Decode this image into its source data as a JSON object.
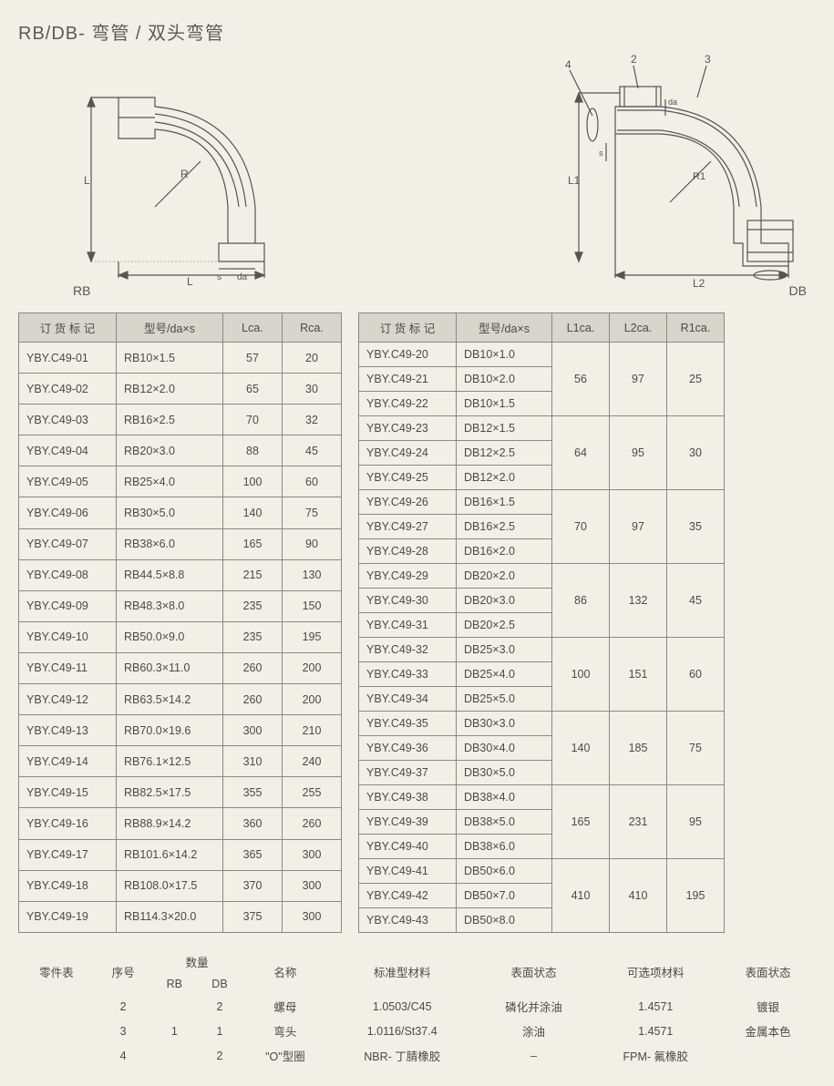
{
  "title": "RB/DB- 弯管 / 双头弯管",
  "diagrams": {
    "rb": {
      "label": "RB",
      "dims": {
        "L": "L",
        "R": "R",
        "s": "s",
        "da": "da"
      }
    },
    "db": {
      "label": "DB",
      "dims": {
        "L1": "L1",
        "L2": "L2",
        "R1": "R1",
        "s": "s",
        "da": "da"
      },
      "callouts": [
        "4",
        "2",
        "3"
      ]
    }
  },
  "rb_table": {
    "columns": [
      "订 货 标 记",
      "型号/da×s",
      "Lca.",
      "Rca."
    ],
    "rows": [
      [
        "YBY.C49-01",
        "RB10×1.5",
        "57",
        "20"
      ],
      [
        "YBY.C49-02",
        "RB12×2.0",
        "65",
        "30"
      ],
      [
        "YBY.C49-03",
        "RB16×2.5",
        "70",
        "32"
      ],
      [
        "YBY.C49-04",
        "RB20×3.0",
        "88",
        "45"
      ],
      [
        "YBY.C49-05",
        "RB25×4.0",
        "100",
        "60"
      ],
      [
        "YBY.C49-06",
        "RB30×5.0",
        "140",
        "75"
      ],
      [
        "YBY.C49-07",
        "RB38×6.0",
        "165",
        "90"
      ],
      [
        "YBY.C49-08",
        "RB44.5×8.8",
        "215",
        "130"
      ],
      [
        "YBY.C49-09",
        "RB48.3×8.0",
        "235",
        "150"
      ],
      [
        "YBY.C49-10",
        "RB50.0×9.0",
        "235",
        "195"
      ],
      [
        "YBY.C49-11",
        "RB60.3×11.0",
        "260",
        "200"
      ],
      [
        "YBY.C49-12",
        "RB63.5×14.2",
        "260",
        "200"
      ],
      [
        "YBY.C49-13",
        "RB70.0×19.6",
        "300",
        "210"
      ],
      [
        "YBY.C49-14",
        "RB76.1×12.5",
        "310",
        "240"
      ],
      [
        "YBY.C49-15",
        "RB82.5×17.5",
        "355",
        "255"
      ],
      [
        "YBY.C49-16",
        "RB88.9×14.2",
        "360",
        "260"
      ],
      [
        "YBY.C49-17",
        "RB101.6×14.2",
        "365",
        "300"
      ],
      [
        "YBY.C49-18",
        "RB108.0×17.5",
        "370",
        "300"
      ],
      [
        "YBY.C49-19",
        "RB114.3×20.0",
        "375",
        "300"
      ]
    ]
  },
  "db_table": {
    "columns": [
      "订 货 标 记",
      "型号/da×s",
      "L1ca.",
      "L2ca.",
      "R1ca."
    ],
    "groups": [
      {
        "rows": [
          [
            "YBY.C49-20",
            "DB10×1.0"
          ],
          [
            "YBY.C49-21",
            "DB10×2.0"
          ],
          [
            "YBY.C49-22",
            "DB10×1.5"
          ]
        ],
        "L1": "56",
        "L2": "97",
        "R1": "25"
      },
      {
        "rows": [
          [
            "YBY.C49-23",
            "DB12×1.5"
          ],
          [
            "YBY.C49-24",
            "DB12×2.5"
          ],
          [
            "YBY.C49-25",
            "DB12×2.0"
          ]
        ],
        "L1": "64",
        "L2": "95",
        "R1": "30"
      },
      {
        "rows": [
          [
            "YBY.C49-26",
            "DB16×1.5"
          ],
          [
            "YBY.C49-27",
            "DB16×2.5"
          ],
          [
            "YBY.C49-28",
            "DB16×2.0"
          ]
        ],
        "L1": "70",
        "L2": "97",
        "R1": "35"
      },
      {
        "rows": [
          [
            "YBY.C49-29",
            "DB20×2.0"
          ],
          [
            "YBY.C49-30",
            "DB20×3.0"
          ],
          [
            "YBY.C49-31",
            "DB20×2.5"
          ]
        ],
        "L1": "86",
        "L2": "132",
        "R1": "45"
      },
      {
        "rows": [
          [
            "YBY.C49-32",
            "DB25×3.0"
          ],
          [
            "YBY.C49-33",
            "DB25×4.0"
          ],
          [
            "YBY.C49-34",
            "DB25×5.0"
          ]
        ],
        "L1": "100",
        "L2": "151",
        "R1": "60"
      },
      {
        "rows": [
          [
            "YBY.C49-35",
            "DB30×3.0"
          ],
          [
            "YBY.C49-36",
            "DB30×4.0"
          ],
          [
            "YBY.C49-37",
            "DB30×5.0"
          ]
        ],
        "L1": "140",
        "L2": "185",
        "R1": "75"
      },
      {
        "rows": [
          [
            "YBY.C49-38",
            "DB38×4.0"
          ],
          [
            "YBY.C49-39",
            "DB38×5.0"
          ],
          [
            "YBY.C49-40",
            "DB38×6.0"
          ]
        ],
        "L1": "165",
        "L2": "231",
        "R1": "95"
      },
      {
        "rows": [
          [
            "YBY.C49-41",
            "DB50×6.0"
          ],
          [
            "YBY.C49-42",
            "DB50×7.0"
          ],
          [
            "YBY.C49-43",
            "DB50×8.0"
          ]
        ],
        "L1": "410",
        "L2": "410",
        "R1": "195"
      }
    ]
  },
  "parts_table": {
    "header1": [
      "零件表",
      "序号",
      "数量",
      "",
      "名称",
      "标准型材料",
      "表面状态",
      "可选项材料",
      "表面状态"
    ],
    "header2": [
      "",
      "",
      "RB",
      "DB",
      "",
      "",
      "",
      "",
      ""
    ],
    "rows": [
      [
        "",
        "2",
        "",
        "2",
        "螺母",
        "1.0503/C45",
        "磷化并涂油",
        "1.4571",
        "镀银"
      ],
      [
        "",
        "3",
        "1",
        "1",
        "弯头",
        "1.0116/St37.4",
        "涂油",
        "1.4571",
        "金属本色"
      ],
      [
        "",
        "4",
        "",
        "2",
        "\"O\"型圈",
        "NBR- 丁腈橡胶",
        "–",
        "FPM- 氟橡胶",
        ""
      ]
    ]
  }
}
